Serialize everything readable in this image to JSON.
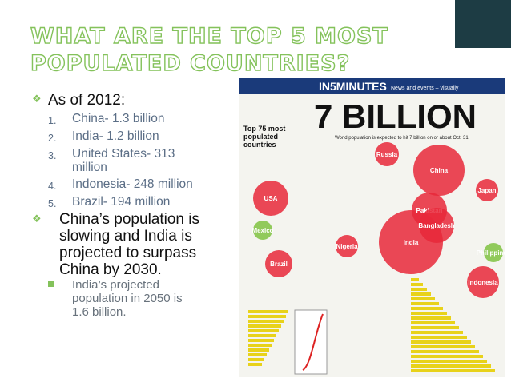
{
  "header": {
    "title_lines": [
      "WHAT ARE THE TOP 5 MOST",
      "POPULATED COUNTRIES?"
    ]
  },
  "bullets": [
    {
      "text": "As of 2012:",
      "items": [
        {
          "marker": "1.",
          "lines": [
            "China- 1.3 billion"
          ]
        },
        {
          "marker": "2.",
          "lines": [
            "India- 1.2 billion"
          ]
        },
        {
          "marker": "3.",
          "lines": [
            "United States- 313",
            "million"
          ]
        },
        {
          "marker": "4.",
          "lines": [
            "Indonesia- 248 million"
          ]
        },
        {
          "marker": "5.",
          "lines": [
            "Brazil- 194 million"
          ]
        }
      ]
    },
    {
      "lines": [
        "China’s population is",
        "slowing and India is",
        "projected to surpass",
        "China by 2030."
      ],
      "sub": [
        "India’s projected",
        "population in 2050 is",
        "1.6 billion."
      ]
    }
  ],
  "infographic": {
    "brand": "IN5MINUTES",
    "tagline": "News and events – visually",
    "headline": "7 BILLION",
    "subhead": "World population is expected to hit 7 billion on or about Oct. 31.",
    "legend_title": [
      "Top 75 most",
      "populated",
      "countries"
    ],
    "countries": [
      "China",
      "India",
      "USA",
      "Indonesia",
      "Brazil",
      "Pakistan",
      "Bangladesh",
      "Nigeria",
      "Russia",
      "Japan",
      "Mexico",
      "Philippines"
    ]
  }
}
